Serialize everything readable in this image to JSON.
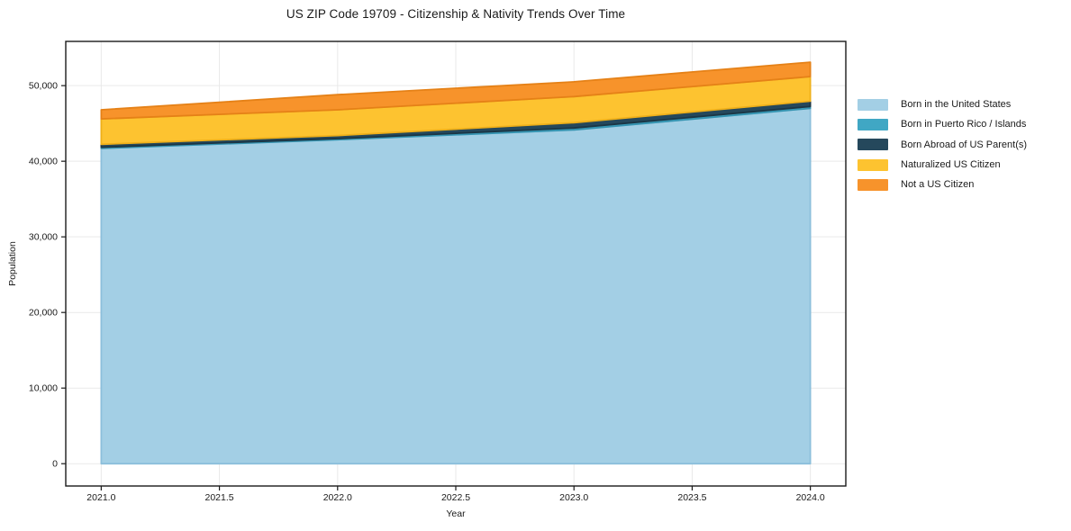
{
  "title": "US ZIP Code 19709 - Citizenship & Nativity Trends Over Time",
  "chart_data": {
    "type": "area",
    "stacked": true,
    "title": "US ZIP Code 19709 - Citizenship & Nativity Trends Over Time",
    "xlabel": "Year",
    "ylabel": "Population",
    "x": [
      2021,
      2022,
      2023,
      2024
    ],
    "series": [
      {
        "name": "Born in the United States",
        "color": "#a3cfe5",
        "edge_color": "#8cbfdb",
        "values": [
          41700,
          42850,
          44150,
          47000
        ]
      },
      {
        "name": "Born in Puerto Rico / Islands",
        "color": "#40a7c4",
        "edge_color": "#3594b1",
        "values": [
          150,
          150,
          250,
          250
        ]
      },
      {
        "name": "Born Abroad of US Parent(s)",
        "color": "#25485c",
        "edge_color": "#1b3645",
        "values": [
          400,
          400,
          700,
          700
        ]
      },
      {
        "name": "Naturalized US Citizen",
        "color": "#fdc330",
        "edge_color": "#efb01a",
        "values": [
          3350,
          3400,
          3450,
          3250
        ]
      },
      {
        "name": "Not a US Citizen",
        "color": "#f7932b",
        "edge_color": "#e58117",
        "values": [
          1200,
          2000,
          1950,
          1900
        ]
      }
    ],
    "stacked_totals": [
      46800,
      48800,
      50500,
      53100
    ],
    "x_ticks": [
      2021,
      2021.5,
      2022,
      2022.5,
      2023,
      2023.5,
      2024
    ],
    "x_tick_labels": [
      "2021.0",
      "2021.5",
      "2022.0",
      "2022.5",
      "2023.0",
      "2023.5",
      "2024.0"
    ],
    "y_ticks": [
      0,
      10000,
      20000,
      30000,
      40000,
      50000
    ],
    "y_tick_labels": [
      "0",
      "10,000",
      "20,000",
      "30,000",
      "40,000",
      "50,000"
    ],
    "xlim": [
      2020.85,
      2024.15
    ],
    "ylim": [
      -2950,
      55850
    ],
    "grid": true,
    "grid_color": "#e9e9e9",
    "frame_color": "#1a1a1a",
    "legend_position": "right"
  }
}
